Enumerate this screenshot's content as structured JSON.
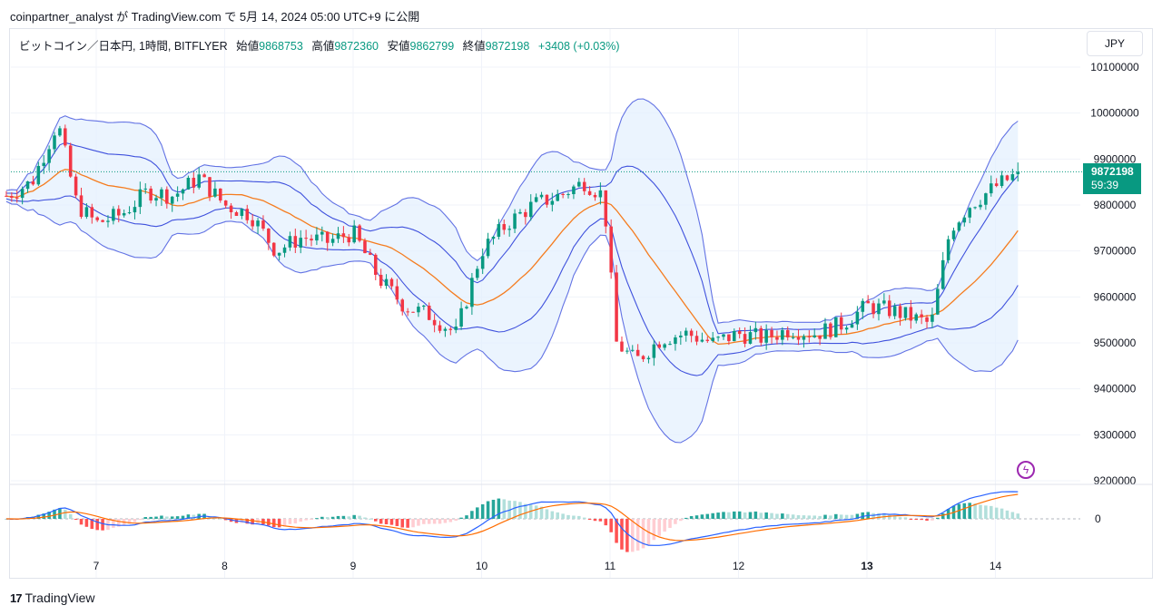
{
  "header": {
    "published": "coinpartner_analyst が TradingView.com で 5月 14, 2024 05:00 UTC+9 に公開"
  },
  "legend": {
    "symbol": "ビットコイン／日本円, 1時間, BITFLYER",
    "open_label": "始値",
    "open": "9868753",
    "high_label": "高値",
    "high": "9872360",
    "low_label": "安値",
    "low": "9862799",
    "close_label": "終値",
    "close": "9872198",
    "change": "+3408 (+0.03%)"
  },
  "currency_button": "JPY",
  "last_price": {
    "price": "9872198",
    "countdown": "59:39"
  },
  "brand": {
    "name": "TradingView",
    "logo": "tradingview-logo-icon"
  },
  "colors": {
    "up": "#089981",
    "down": "#f23645",
    "band": "#3f51dd",
    "basis": "#f57c1f",
    "band_fill": "#e3f0fd"
  },
  "chart_data": [
    {
      "type": "candlestick",
      "indicator": "bollinger-bands",
      "x_ticks": [
        "7",
        "8",
        "9",
        "10",
        "11",
        "12",
        "13",
        "14"
      ],
      "x_tick_bold": [
        "13"
      ],
      "y_ticks": [
        "10100000",
        "10000000",
        "9900000",
        "9800000",
        "9700000",
        "9600000",
        "9500000",
        "9400000",
        "9300000",
        "9200000"
      ],
      "ylim": [
        9200000,
        10100000
      ],
      "last_value": 9872198,
      "close_approx": [
        [
          6.3,
          9820000
        ],
        [
          6.5,
          9850000
        ],
        [
          6.7,
          9980000
        ],
        [
          6.85,
          9800000
        ],
        [
          7.0,
          9760000
        ],
        [
          7.2,
          9780000
        ],
        [
          7.4,
          9830000
        ],
        [
          7.6,
          9820000
        ],
        [
          7.8,
          9860000
        ],
        [
          8.0,
          9800000
        ],
        [
          8.2,
          9780000
        ],
        [
          8.4,
          9700000
        ],
        [
          8.6,
          9730000
        ],
        [
          8.8,
          9720000
        ],
        [
          9.0,
          9740000
        ],
        [
          9.2,
          9640000
        ],
        [
          9.4,
          9580000
        ],
        [
          9.6,
          9560000
        ],
        [
          9.8,
          9520000
        ],
        [
          10.0,
          9700000
        ],
        [
          10.2,
          9760000
        ],
        [
          10.4,
          9800000
        ],
        [
          10.6,
          9820000
        ],
        [
          10.8,
          9850000
        ],
        [
          10.95,
          9820000
        ],
        [
          11.05,
          9500000
        ],
        [
          11.2,
          9460000
        ],
        [
          11.4,
          9510000
        ],
        [
          11.6,
          9520000
        ],
        [
          11.8,
          9500000
        ],
        [
          12.0,
          9520000
        ],
        [
          12.2,
          9510000
        ],
        [
          12.4,
          9530000
        ],
        [
          12.6,
          9520000
        ],
        [
          12.8,
          9540000
        ],
        [
          13.0,
          9580000
        ],
        [
          13.2,
          9570000
        ],
        [
          13.5,
          9540000
        ],
        [
          13.65,
          9750000
        ],
        [
          13.8,
          9800000
        ],
        [
          14.0,
          9840000
        ],
        [
          14.2,
          9872198
        ]
      ]
    },
    {
      "type": "macd",
      "y_ticks": [
        "0"
      ],
      "series": [
        {
          "name": "",
          "color": "#2962ff"
        },
        {
          "name": "",
          "color": "#ff6d00"
        }
      ]
    }
  ]
}
